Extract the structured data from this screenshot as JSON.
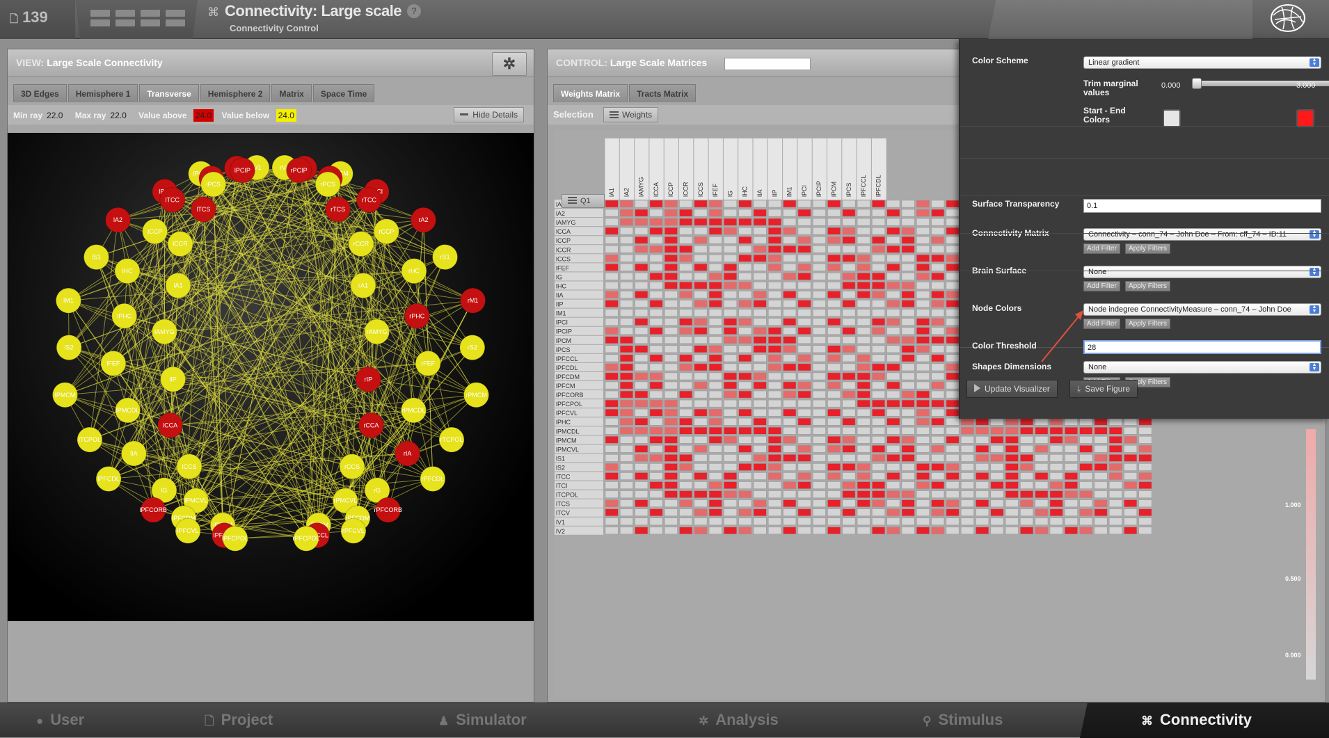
{
  "header": {
    "project_id": "139",
    "title": "Connectivity: Large scale",
    "subtitle": "Connectivity Control",
    "help": "?"
  },
  "view": {
    "label": "VIEW:",
    "name": "Large Scale Connectivity",
    "tabs": [
      "3D Edges",
      "Hemisphere 1",
      "Transverse",
      "Hemisphere 2",
      "Matrix",
      "Space Time"
    ],
    "active_tab": "Transverse",
    "details": {
      "min_ray_label": "Min ray",
      "min_ray": "22.0",
      "max_ray_label": "Max ray",
      "max_ray": "22.0",
      "value_above_label": "Value above",
      "value_above": "24.0",
      "value_below_label": "Value below",
      "value_below": "24.0",
      "hide_details": "Hide Details"
    },
    "nodes": [
      {
        "label": "lV1",
        "c": "y"
      },
      {
        "label": "rV1",
        "c": "y"
      },
      {
        "label": "lV2",
        "c": "r"
      },
      {
        "label": "rV2",
        "c": "r"
      },
      {
        "label": "lPCIP",
        "c": "r"
      },
      {
        "label": "rPCIP",
        "c": "r"
      },
      {
        "label": "lPCM",
        "c": "y"
      },
      {
        "label": "rPCM",
        "c": "y"
      },
      {
        "label": "lTCV",
        "c": "r"
      },
      {
        "label": "rTCV",
        "c": "r"
      },
      {
        "label": "lPCS",
        "c": "y"
      },
      {
        "label": "rPCS",
        "c": "y"
      },
      {
        "label": "lPCI",
        "c": "r"
      },
      {
        "label": "rPCI",
        "c": "r"
      },
      {
        "label": "lTCC",
        "c": "r"
      },
      {
        "label": "rTCC",
        "c": "r"
      },
      {
        "label": "lTCS",
        "c": "r"
      },
      {
        "label": "rTCS",
        "c": "r"
      },
      {
        "label": "lA2",
        "c": "r"
      },
      {
        "label": "rA2",
        "c": "r"
      },
      {
        "label": "lCCP",
        "c": "y"
      },
      {
        "label": "rCCP",
        "c": "y"
      },
      {
        "label": "lCCR",
        "c": "y"
      },
      {
        "label": "rCCR",
        "c": "y"
      },
      {
        "label": "lS1",
        "c": "y"
      },
      {
        "label": "rS1",
        "c": "y"
      },
      {
        "label": "lHC",
        "c": "y"
      },
      {
        "label": "rHC",
        "c": "y"
      },
      {
        "label": "lA1",
        "c": "y"
      },
      {
        "label": "rA1",
        "c": "y"
      },
      {
        "label": "lM1",
        "c": "y"
      },
      {
        "label": "rM1",
        "c": "r"
      },
      {
        "label": "lPHC",
        "c": "y"
      },
      {
        "label": "rPHC",
        "c": "r"
      },
      {
        "label": "lAMYG",
        "c": "y"
      },
      {
        "label": "rAMYG",
        "c": "y"
      },
      {
        "label": "lS2",
        "c": "y"
      },
      {
        "label": "rS2",
        "c": "y"
      },
      {
        "label": "lFEF",
        "c": "y"
      },
      {
        "label": "rFEF",
        "c": "y"
      },
      {
        "label": "lIP",
        "c": "y"
      },
      {
        "label": "rIP",
        "c": "r"
      },
      {
        "label": "lPMCM",
        "c": "y"
      },
      {
        "label": "rPMCM",
        "c": "y"
      },
      {
        "label": "lPMCDL",
        "c": "y"
      },
      {
        "label": "rPMCDL",
        "c": "y"
      },
      {
        "label": "lCCA",
        "c": "r"
      },
      {
        "label": "rCCA",
        "c": "r"
      },
      {
        "label": "lTCPOL",
        "c": "y"
      },
      {
        "label": "rTCPOL",
        "c": "y"
      },
      {
        "label": "lIA",
        "c": "y"
      },
      {
        "label": "rIA",
        "c": "r"
      },
      {
        "label": "lCCS",
        "c": "y"
      },
      {
        "label": "rCCS",
        "c": "y"
      },
      {
        "label": "lPFCDL",
        "c": "y"
      },
      {
        "label": "rPFCDL",
        "c": "y"
      },
      {
        "label": "lG",
        "c": "y"
      },
      {
        "label": "rG",
        "c": "y"
      },
      {
        "label": "lPMCVL",
        "c": "y"
      },
      {
        "label": "rPMCVL",
        "c": "y"
      },
      {
        "label": "lPFCORB",
        "c": "r"
      },
      {
        "label": "rPFCORB",
        "c": "r"
      },
      {
        "label": "lPFCDM",
        "c": "y"
      },
      {
        "label": "rPFCDM",
        "c": "y"
      },
      {
        "label": "lPFCM",
        "c": "y"
      },
      {
        "label": "rPFCM",
        "c": "y"
      },
      {
        "label": "lPFCVL",
        "c": "y"
      },
      {
        "label": "rPFCVL",
        "c": "y"
      },
      {
        "label": "lPFCCL",
        "c": "r"
      },
      {
        "label": "rPFCCL",
        "c": "r"
      },
      {
        "label": "lPFCPOL",
        "c": "y"
      },
      {
        "label": "rPFCPOL",
        "c": "y"
      }
    ]
  },
  "control": {
    "label": "CONTROL:",
    "name": "Large Scale Matrices",
    "tabs": [
      "Weights Matrix",
      "Tracts Matrix"
    ],
    "active_tab": "Weights Matrix",
    "selection_label": "Selection",
    "weights_button": "Weights",
    "quadrant_button": "Q1",
    "columns": [
      "lA1",
      "lA2",
      "lAMYG",
      "lCCA",
      "lCCP",
      "lCCR",
      "lCCS",
      "lFEF",
      "lG",
      "lHC",
      "lIA",
      "lIP",
      "lM1",
      "lPCI",
      "lPCIP",
      "lPCM",
      "lPCS",
      "lPFCCL",
      "lPFCDL"
    ],
    "rows": [
      "lA1",
      "lA2",
      "lAMYG",
      "lCCA",
      "lCCP",
      "lCCR",
      "lCCS",
      "lFEF",
      "lG",
      "lHC",
      "lIA",
      "lIP",
      "lM1",
      "lPCI",
      "lPCIP",
      "lPCM",
      "lPCS",
      "lPFCCL",
      "lPFCDL",
      "lPFCDM",
      "lPFCM",
      "lPFCORB",
      "lPFCPOL",
      "lPFCVL",
      "lPHC",
      "lPMCDL",
      "lPMCM",
      "lPMCVL",
      "lS1",
      "lS2",
      "lTCC",
      "lTCI",
      "lTCPOL",
      "lTCS",
      "lTCV",
      "lV1",
      "lV2"
    ],
    "colorbar_ticks": [
      "1.000",
      "0.500",
      "0.000"
    ]
  },
  "settings": {
    "color_scheme_label": "Color Scheme",
    "color_scheme": "Linear gradient",
    "trim_label": "Trim marginal values",
    "trim_min": "0.000",
    "trim_max": "3.000",
    "start_end_label": "Start - End Colors",
    "start_color": "#e6e6e6",
    "end_color": "#ff1a1a",
    "surface_transparency_label": "Surface Transparency",
    "surface_transparency": "0.1",
    "connectivity_matrix_label": "Connectivity Matrix",
    "connectivity_matrix": "Connectivity – conn_74 – John Doe – From: cff_74 – ID:11",
    "brain_surface_label": "Brain Surface",
    "brain_surface": "None",
    "node_colors_label": "Node Colors",
    "node_colors": "Node indegree ConnectivityMeasure – conn_74 – John Doe",
    "color_threshold_label": "Color Threshold",
    "color_threshold": "28",
    "shapes_dimensions_label": "Shapes Dimensions",
    "shapes_dimensions": "None",
    "add_filter": "Add Filter",
    "apply_filters": "Apply Filters",
    "update_visualizer": "Update Visualizer",
    "save_figure": "Save Figure"
  },
  "nav": {
    "items": [
      "User",
      "Project",
      "Simulator",
      "Analysis",
      "Stimulus",
      "Connectivity"
    ],
    "active": "Connectivity"
  },
  "colors": {
    "node_red": "#c41010",
    "node_yellow": "#e6e21c",
    "edge": "#e4e23a",
    "cell_strong": "#e8202a",
    "cell_mid": "#e56a6a",
    "cell_weak": "#d4d4d4",
    "value_above_chip": "#d40000",
    "value_below_chip": "#f4f000"
  }
}
